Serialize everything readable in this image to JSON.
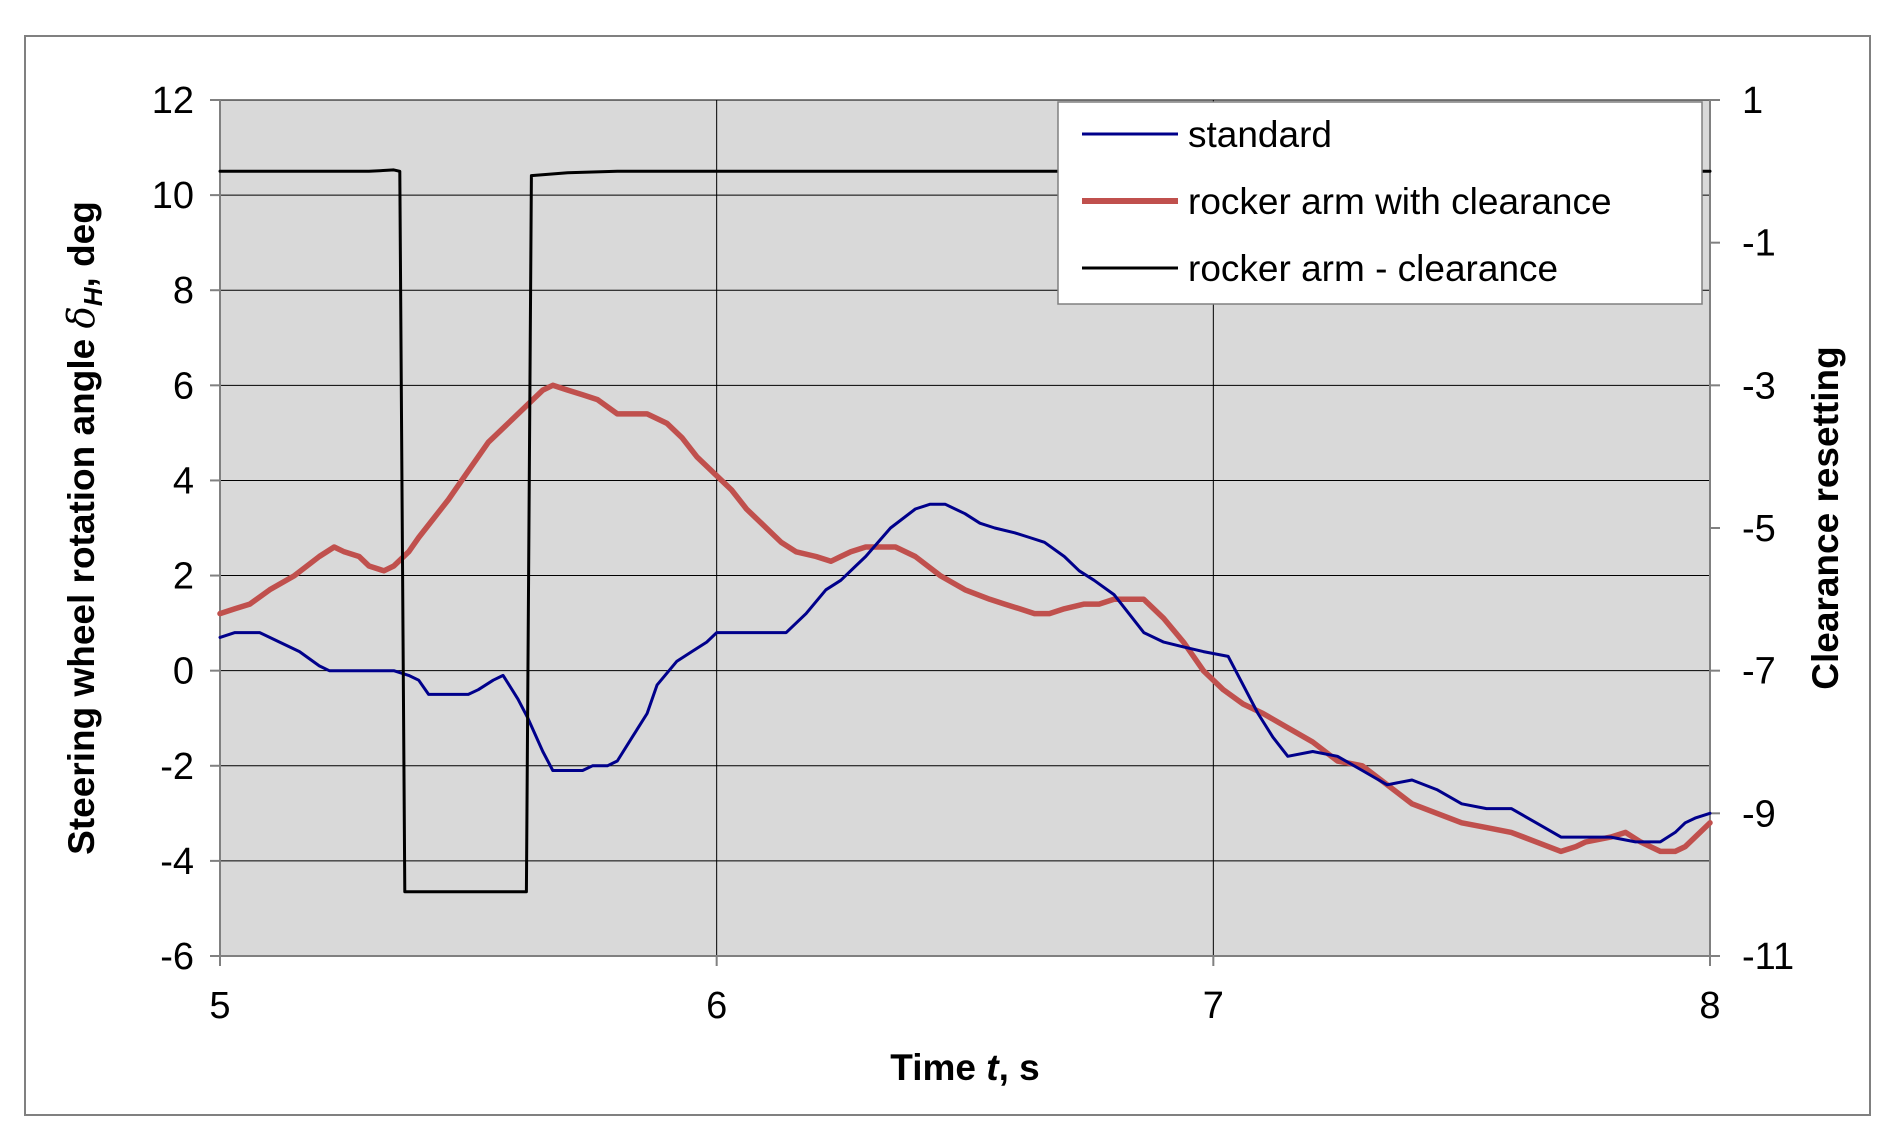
{
  "chart_data": {
    "type": "line",
    "xlabel": {
      "pre": "Time ",
      "italic": "t",
      "post": ", s"
    },
    "ylabel": {
      "pre": "Steering wheel rotation angle ",
      "symbol": "δ",
      "subscript": "H",
      "post": ", deg"
    },
    "y2label": "Clearance resetting",
    "xlim": [
      5,
      8
    ],
    "ylim": [
      -6,
      12
    ],
    "y2lim": [
      -11,
      1
    ],
    "xticks": [
      "5",
      "6",
      "7",
      "8"
    ],
    "yticks": [
      "-6",
      "-4",
      "-2",
      "0",
      "2",
      "4",
      "6",
      "8",
      "10",
      "12"
    ],
    "y2ticks": [
      "-11",
      "-9",
      "-7",
      "-5",
      "-3",
      "-1",
      "1"
    ],
    "grid": true,
    "legend_position": "top-right",
    "plot_background": "#d9d9d9",
    "series": [
      {
        "name": "standard",
        "axis": "left",
        "color": "#00008b",
        "x": [
          5.0,
          5.03,
          5.08,
          5.12,
          5.16,
          5.2,
          5.22,
          5.3,
          5.35,
          5.38,
          5.4,
          5.42,
          5.45,
          5.5,
          5.52,
          5.55,
          5.57,
          5.6,
          5.62,
          5.65,
          5.67,
          5.7,
          5.73,
          5.75,
          5.78,
          5.8,
          5.83,
          5.86,
          5.88,
          5.92,
          5.95,
          5.98,
          6.0,
          6.03,
          6.06,
          6.1,
          6.14,
          6.18,
          6.22,
          6.25,
          6.28,
          6.3,
          6.35,
          6.4,
          6.43,
          6.46,
          6.5,
          6.53,
          6.56,
          6.6,
          6.63,
          6.66,
          6.7,
          6.73,
          6.76,
          6.8,
          6.83,
          6.86,
          6.9,
          6.94,
          6.98,
          7.03,
          7.06,
          7.09,
          7.12,
          7.15,
          7.2,
          7.25,
          7.3,
          7.35,
          7.4,
          7.45,
          7.5,
          7.55,
          7.6,
          7.65,
          7.7,
          7.75,
          7.8,
          7.85,
          7.9,
          7.93,
          7.95,
          7.97,
          8.0
        ],
        "y": [
          0.7,
          0.8,
          0.8,
          0.6,
          0.4,
          0.1,
          0.0,
          0.0,
          0.0,
          -0.1,
          -0.2,
          -0.5,
          -0.5,
          -0.5,
          -0.4,
          -0.2,
          -0.1,
          -0.6,
          -1.0,
          -1.7,
          -2.1,
          -2.1,
          -2.1,
          -2.0,
          -2.0,
          -1.9,
          -1.4,
          -0.9,
          -0.3,
          0.2,
          0.4,
          0.6,
          0.8,
          0.8,
          0.8,
          0.8,
          0.8,
          1.2,
          1.7,
          1.9,
          2.2,
          2.4,
          3.0,
          3.4,
          3.5,
          3.5,
          3.3,
          3.1,
          3.0,
          2.9,
          2.8,
          2.7,
          2.4,
          2.1,
          1.9,
          1.6,
          1.2,
          0.8,
          0.6,
          0.5,
          0.4,
          0.3,
          -0.3,
          -0.9,
          -1.4,
          -1.8,
          -1.7,
          -1.8,
          -2.1,
          -2.4,
          -2.3,
          -2.5,
          -2.8,
          -2.9,
          -2.9,
          -3.2,
          -3.5,
          -3.5,
          -3.5,
          -3.6,
          -3.6,
          -3.4,
          -3.2,
          -3.1,
          -3.0
        ]
      },
      {
        "name": "rocker arm with clearance",
        "axis": "left",
        "color": "#c0504d",
        "x": [
          5.0,
          5.03,
          5.06,
          5.1,
          5.15,
          5.2,
          5.23,
          5.25,
          5.28,
          5.3,
          5.33,
          5.35,
          5.38,
          5.4,
          5.43,
          5.46,
          5.5,
          5.54,
          5.58,
          5.62,
          5.65,
          5.67,
          5.7,
          5.73,
          5.76,
          5.8,
          5.83,
          5.86,
          5.88,
          5.9,
          5.93,
          5.96,
          6.0,
          6.03,
          6.06,
          6.1,
          6.13,
          6.16,
          6.2,
          6.23,
          6.25,
          6.27,
          6.3,
          6.33,
          6.36,
          6.4,
          6.45,
          6.5,
          6.55,
          6.58,
          6.61,
          6.64,
          6.67,
          6.7,
          6.74,
          6.77,
          6.8,
          6.83,
          6.86,
          6.9,
          6.94,
          6.98,
          7.02,
          7.06,
          7.1,
          7.15,
          7.2,
          7.25,
          7.3,
          7.35,
          7.4,
          7.45,
          7.5,
          7.55,
          7.6,
          7.65,
          7.7,
          7.73,
          7.75,
          7.8,
          7.83,
          7.86,
          7.9,
          7.93,
          7.95,
          7.97,
          8.0
        ],
        "y": [
          1.2,
          1.3,
          1.4,
          1.7,
          2.0,
          2.4,
          2.6,
          2.5,
          2.4,
          2.2,
          2.1,
          2.2,
          2.5,
          2.8,
          3.2,
          3.6,
          4.2,
          4.8,
          5.2,
          5.6,
          5.9,
          6.0,
          5.9,
          5.8,
          5.7,
          5.4,
          5.4,
          5.4,
          5.3,
          5.2,
          4.9,
          4.5,
          4.1,
          3.8,
          3.4,
          3.0,
          2.7,
          2.5,
          2.4,
          2.3,
          2.4,
          2.5,
          2.6,
          2.6,
          2.6,
          2.4,
          2.0,
          1.7,
          1.5,
          1.4,
          1.3,
          1.2,
          1.2,
          1.3,
          1.4,
          1.4,
          1.5,
          1.5,
          1.5,
          1.1,
          0.6,
          0.0,
          -0.4,
          -0.7,
          -0.9,
          -1.2,
          -1.5,
          -1.9,
          -2.0,
          -2.4,
          -2.8,
          -3.0,
          -3.2,
          -3.3,
          -3.4,
          -3.6,
          -3.8,
          -3.7,
          -3.6,
          -3.5,
          -3.4,
          -3.6,
          -3.8,
          -3.8,
          -3.7,
          -3.5,
          -3.2
        ]
      },
      {
        "name": "rocker arm - clearance",
        "axis": "right",
        "color": "#000000",
        "x": [
          5.0,
          5.1,
          5.2,
          5.3,
          5.35,
          5.362,
          5.372,
          5.5,
          5.6,
          5.617,
          5.627,
          5.7,
          5.8,
          5.9,
          6.0,
          6.2,
          6.4,
          6.6,
          6.8,
          7.0,
          7.2,
          7.4,
          7.6,
          7.8,
          8.0
        ],
        "y": [
          0.0,
          0.0,
          0.0,
          0.0,
          0.02,
          0.0,
          -10.1,
          -10.1,
          -10.1,
          -10.1,
          -0.06,
          -0.02,
          0.0,
          0.0,
          0.0,
          0.0,
          0.0,
          0.0,
          0.0,
          0.0,
          0.0,
          0.0,
          0.0,
          0.0,
          0.0
        ]
      }
    ]
  }
}
